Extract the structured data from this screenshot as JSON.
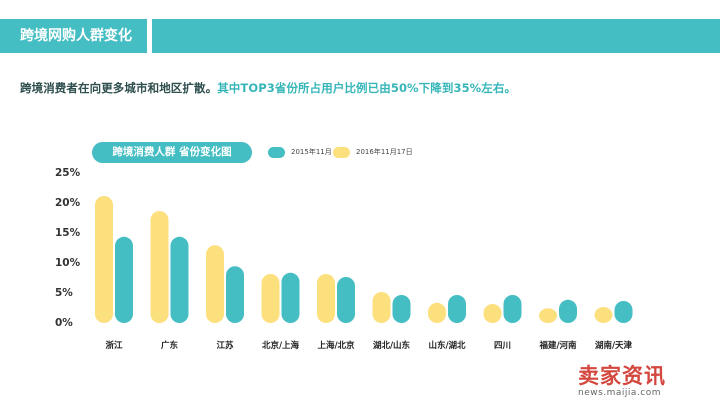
{
  "header": {
    "title": "跨境网购人群变化"
  },
  "subtitle": {
    "part1": "跨境消费者在向更多城市和地区扩散。",
    "part2": "其中TOP3省份所占用户比例已由50%下降到35%左右。"
  },
  "colors": {
    "accent": "#45bec3",
    "series_2015": "#45bec3",
    "series_2016": "#fde07e"
  },
  "chart_data": {
    "type": "bar",
    "title": "跨境消费人群 省份变化图",
    "categories": [
      "浙江",
      "广东",
      "江苏",
      "北京/上海",
      "上海/北京",
      "湖北/山东",
      "山东/湖北",
      "四川",
      "福建/河南",
      "湖南/天津"
    ],
    "series": [
      {
        "name": "2016年11月17日",
        "values": [
          21,
          18.5,
          12.8,
          8,
          8,
          5,
          3.2,
          3,
          2.3,
          2.5
        ]
      },
      {
        "name": "2015年11月",
        "values": [
          14.2,
          14.2,
          9.3,
          8.2,
          7.5,
          4.5,
          4.5,
          4.5,
          3.7,
          3.5
        ]
      }
    ],
    "yticks": [
      "25%",
      "20%",
      "15%",
      "10%",
      "5%",
      "0%"
    ],
    "ylim": [
      0,
      25
    ],
    "legend_position": "top",
    "grid": false
  },
  "watermark": {
    "text": "卖家资讯",
    "url": "news.maijia.com"
  }
}
